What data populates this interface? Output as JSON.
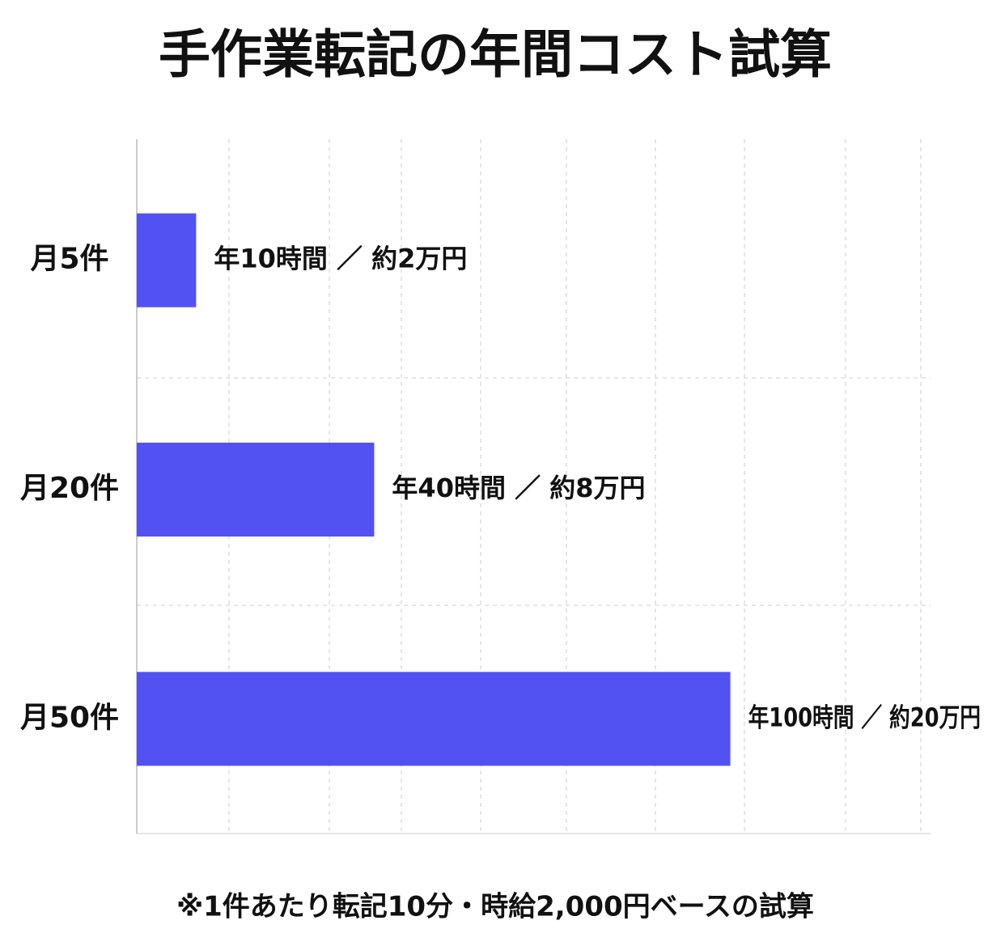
{
  "chart_data": {
    "type": "hbar",
    "title": "手作業転記の年間コスト試算",
    "categories": [
      "月5件",
      "月20件",
      "月50件"
    ],
    "values": [
      10,
      40,
      100
    ],
    "value_labels": [
      "年10時間 ／ 約2万円",
      "年40時間 ／ 約8万円",
      "年100時間 ／ 約20万円"
    ],
    "color": "#5252f2",
    "xlim": [
      0,
      134
    ],
    "grid": true,
    "footnote": "※1件あたり転記10分・時給2,000円ベースの試算"
  }
}
